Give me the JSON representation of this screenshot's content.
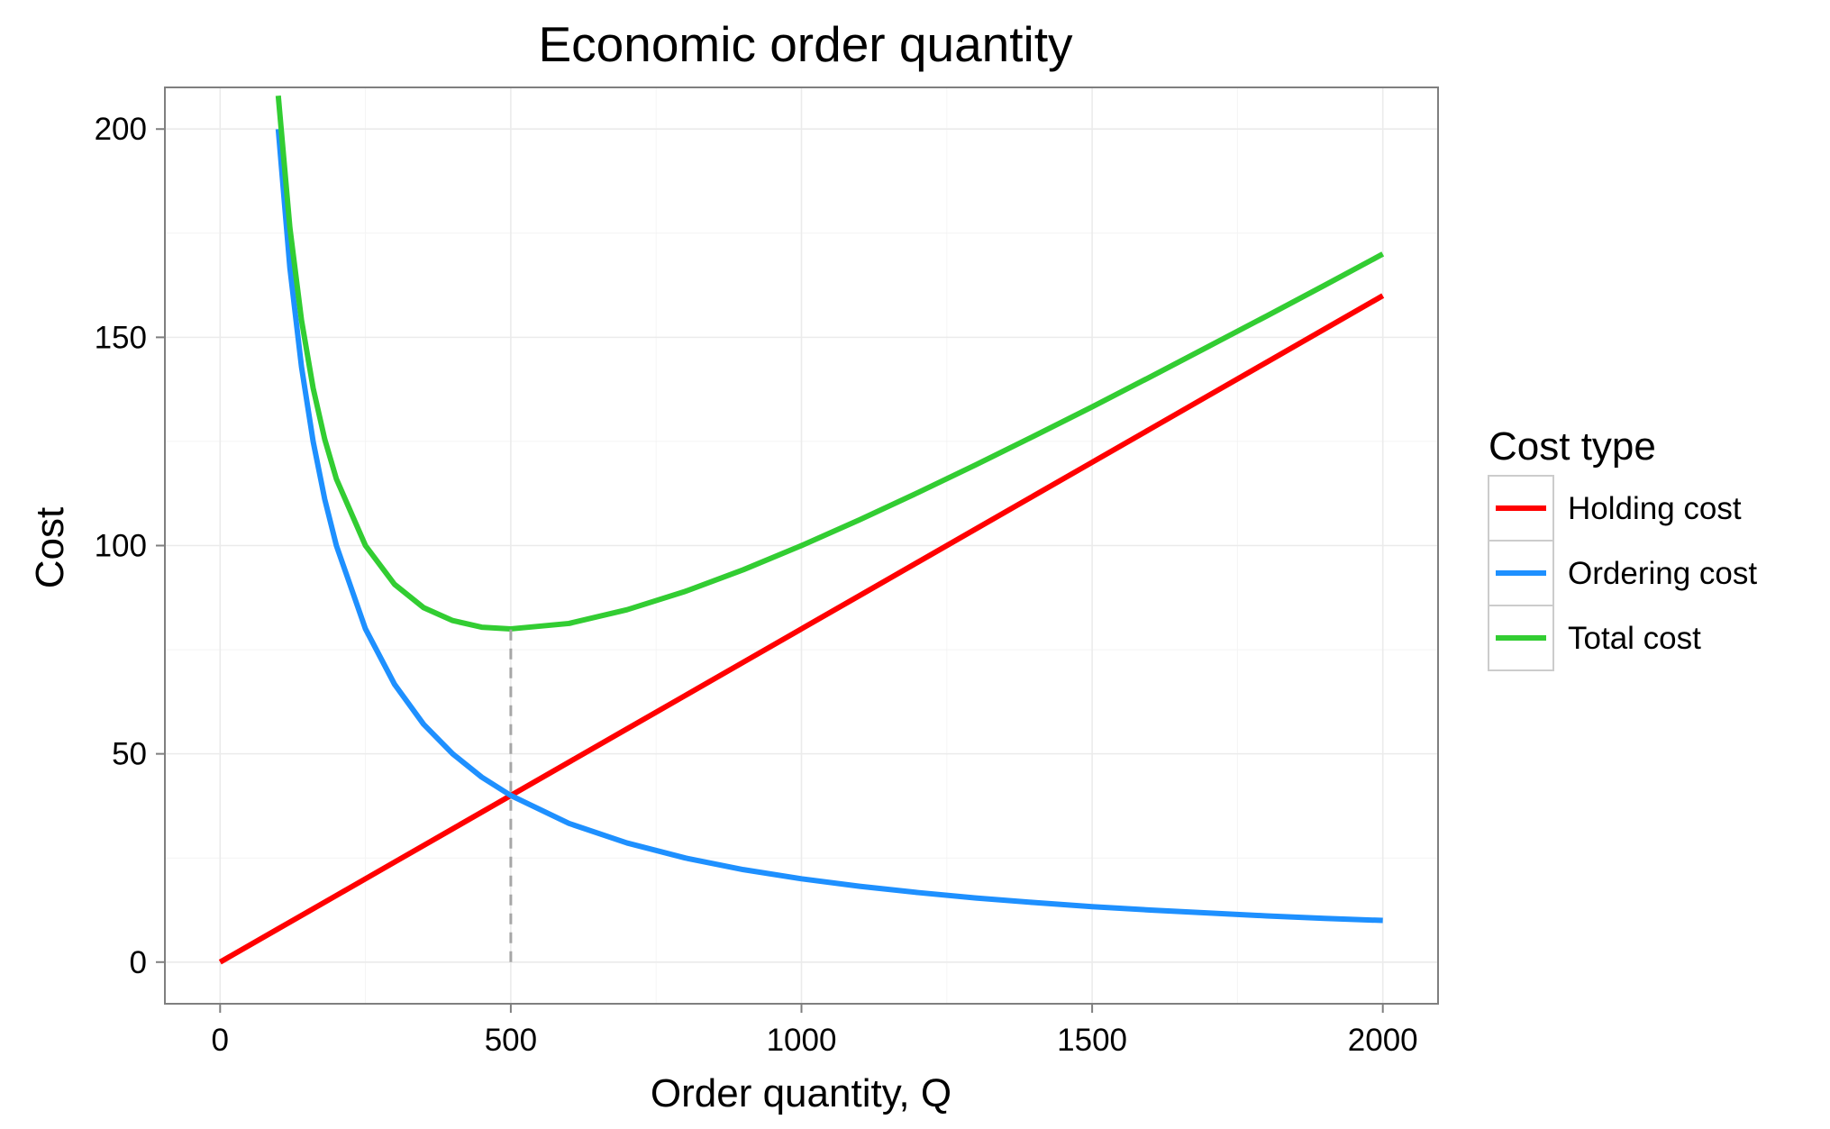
{
  "chart_data": {
    "type": "line",
    "title": "Economic order quantity",
    "xlabel": "Order quantity, Q",
    "ylabel": "Cost",
    "xlim": [
      -95,
      2095
    ],
    "ylim": [
      -10,
      210
    ],
    "x_ticks": [
      0,
      500,
      1000,
      1500,
      2000
    ],
    "x_tick_labels": [
      "0",
      "500",
      "1000",
      "1500",
      "2000"
    ],
    "y_ticks": [
      0,
      50,
      100,
      150,
      200
    ],
    "y_tick_labels": [
      "0",
      "50",
      "100",
      "150",
      "200"
    ],
    "grid": true,
    "legend": {
      "title": "Cost type",
      "position": "right",
      "entries": [
        "Holding cost",
        "Ordering cost",
        "Total cost"
      ]
    },
    "series": [
      {
        "name": "Holding cost",
        "color": "#ff0000",
        "x": [
          0,
          100,
          200,
          300,
          400,
          500,
          600,
          700,
          800,
          900,
          1000,
          1100,
          1200,
          1300,
          1400,
          1500,
          1600,
          1700,
          1800,
          1900,
          2000
        ],
        "y": [
          0,
          8,
          16,
          24,
          32,
          40,
          48,
          56,
          64,
          72,
          80,
          88,
          96,
          104,
          112,
          120,
          128,
          136,
          144,
          152,
          160
        ]
      },
      {
        "name": "Ordering cost",
        "color": "#1e90ff",
        "x": [
          100,
          120,
          140,
          160,
          180,
          200,
          250,
          300,
          350,
          400,
          450,
          500,
          600,
          700,
          800,
          900,
          1000,
          1100,
          1200,
          1300,
          1400,
          1500,
          1600,
          1700,
          1800,
          1900,
          2000
        ],
        "y": [
          200,
          166.7,
          142.9,
          125,
          111.1,
          100,
          80,
          66.7,
          57.1,
          50,
          44.4,
          40,
          33.3,
          28.6,
          25,
          22.2,
          20,
          18.2,
          16.7,
          15.4,
          14.3,
          13.3,
          12.5,
          11.8,
          11.1,
          10.5,
          10
        ]
      },
      {
        "name": "Total cost",
        "color": "#32cd32",
        "x": [
          100,
          120,
          140,
          160,
          180,
          200,
          250,
          300,
          350,
          400,
          450,
          500,
          600,
          700,
          800,
          900,
          1000,
          1100,
          1200,
          1300,
          1400,
          1500,
          1600,
          1700,
          1800,
          1900,
          2000
        ],
        "y": [
          208,
          176.3,
          154.1,
          137.8,
          125.5,
          116,
          100,
          90.7,
          85.1,
          82,
          80.4,
          80,
          81.3,
          84.6,
          89,
          94.2,
          100,
          106.2,
          112.7,
          119.4,
          126.3,
          133.3,
          140.5,
          147.8,
          155.1,
          162.5,
          170
        ]
      }
    ],
    "annotations": [
      {
        "type": "vline-dashed",
        "x": 500,
        "y_from": 0,
        "y_to": 80,
        "color": "#a6a6a6"
      }
    ]
  }
}
